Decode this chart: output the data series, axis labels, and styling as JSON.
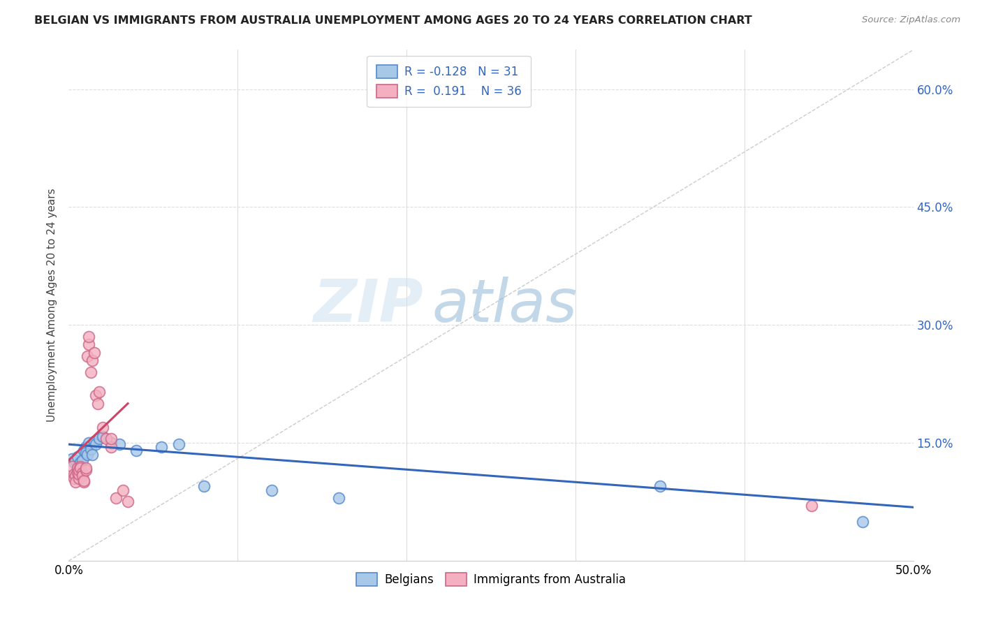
{
  "title": "BELGIAN VS IMMIGRANTS FROM AUSTRALIA UNEMPLOYMENT AMONG AGES 20 TO 24 YEARS CORRELATION CHART",
  "source": "Source: ZipAtlas.com",
  "ylabel": "Unemployment Among Ages 20 to 24 years",
  "xlim": [
    0.0,
    0.5
  ],
  "ylim": [
    0.0,
    0.65
  ],
  "yticks": [
    0.0,
    0.15,
    0.3,
    0.45,
    0.6
  ],
  "ytick_labels": [
    "",
    "15.0%",
    "30.0%",
    "45.0%",
    "60.0%"
  ],
  "watermark_zip": "ZIP",
  "watermark_atlas": "atlas",
  "legend_r_belgian": "-0.128",
  "legend_n_belgian": "31",
  "legend_r_immigrant": "0.191",
  "legend_n_immigrant": "36",
  "belgian_color": "#a8c8e8",
  "immigrant_color": "#f4b0c0",
  "belgian_edge_color": "#5588cc",
  "immigrant_edge_color": "#cc6688",
  "belgian_line_color": "#3366bb",
  "immigrant_line_color": "#cc4466",
  "diagonal_color": "#cccccc",
  "belgians_x": [
    0.002,
    0.003,
    0.004,
    0.005,
    0.005,
    0.006,
    0.006,
    0.007,
    0.007,
    0.008,
    0.009,
    0.01,
    0.01,
    0.011,
    0.012,
    0.013,
    0.014,
    0.015,
    0.016,
    0.018,
    0.02,
    0.025,
    0.03,
    0.04,
    0.055,
    0.065,
    0.08,
    0.12,
    0.16,
    0.35,
    0.47
  ],
  "belgians_y": [
    0.13,
    0.125,
    0.128,
    0.132,
    0.12,
    0.118,
    0.122,
    0.125,
    0.115,
    0.128,
    0.14,
    0.145,
    0.138,
    0.135,
    0.15,
    0.142,
    0.135,
    0.152,
    0.148,
    0.155,
    0.158,
    0.15,
    0.148,
    0.14,
    0.145,
    0.148,
    0.095,
    0.09,
    0.08,
    0.095,
    0.05
  ],
  "immigrants_x": [
    0.002,
    0.003,
    0.003,
    0.004,
    0.004,
    0.005,
    0.005,
    0.005,
    0.006,
    0.006,
    0.006,
    0.007,
    0.007,
    0.008,
    0.008,
    0.009,
    0.009,
    0.01,
    0.01,
    0.011,
    0.012,
    0.012,
    0.013,
    0.014,
    0.015,
    0.016,
    0.017,
    0.018,
    0.02,
    0.022,
    0.025,
    0.025,
    0.028,
    0.032,
    0.035,
    0.44
  ],
  "immigrants_y": [
    0.12,
    0.11,
    0.105,
    0.108,
    0.1,
    0.115,
    0.118,
    0.112,
    0.105,
    0.11,
    0.115,
    0.12,
    0.118,
    0.112,
    0.108,
    0.1,
    0.102,
    0.115,
    0.118,
    0.26,
    0.275,
    0.285,
    0.24,
    0.255,
    0.265,
    0.21,
    0.2,
    0.215,
    0.17,
    0.155,
    0.145,
    0.155,
    0.08,
    0.09,
    0.075,
    0.07
  ],
  "bel_line_x0": 0.0,
  "bel_line_x1": 0.5,
  "bel_line_y0": 0.148,
  "bel_line_y1": 0.068,
  "imm_line_x0": 0.0,
  "imm_line_x1": 0.035,
  "imm_line_y0": 0.128,
  "imm_line_y1": 0.2
}
